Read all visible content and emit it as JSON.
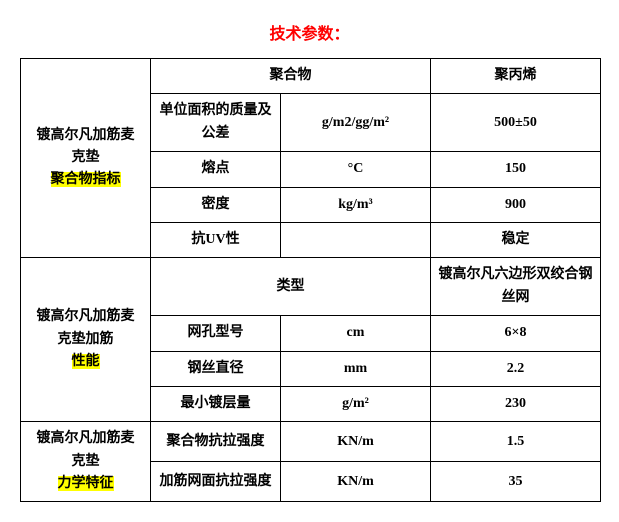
{
  "title": {
    "text": "技术参数：",
    "color": "#ff0000"
  },
  "table": {
    "header": {
      "col23": "聚合物",
      "col4": "聚丙烯"
    },
    "group1": {
      "label_line1": "镀高尔凡加筋麦",
      "label_line2": "克垫",
      "label_hl": "聚合物指标",
      "rows": {
        "r1": {
          "p": "单位面积的质量及公差",
          "u": "g/m2/gg/m²",
          "v": "500±50"
        },
        "r2": {
          "p": "熔点",
          "u": "°C",
          "v": "150"
        },
        "r3": {
          "p": "密度",
          "u": "kg/m³",
          "v": "900"
        },
        "r4": {
          "p": "抗UV性",
          "u": "",
          "v": "稳定"
        }
      }
    },
    "group2": {
      "label_line1": "镀高尔凡加筋麦",
      "label_line2": "克垫加筋",
      "label_hl": "性能",
      "rows": {
        "r1": {
          "p": "类型",
          "u": "",
          "v": "镀高尔凡六边形双绞合钢丝网"
        },
        "r2": {
          "p": "网孔型号",
          "u": "cm",
          "v": "6×8"
        },
        "r3": {
          "p": "钢丝直径",
          "u": "mm",
          "v": "2.2"
        },
        "r4": {
          "p": "最小镀层量",
          "u": "g/m²",
          "v": "230"
        }
      }
    },
    "group3": {
      "label_line1": "镀高尔凡加筋麦",
      "label_line2": "克垫",
      "label_hl": "力学特征",
      "rows": {
        "r1": {
          "p": "聚合物抗拉强度",
          "u": "KN/m",
          "v": "1.5"
        },
        "r2": {
          "p": "加筋网面抗拉强度",
          "u": "KN/m",
          "v": "35"
        }
      }
    }
  },
  "colors": {
    "highlight": "#ffff00",
    "border": "#000000",
    "bg": "#ffffff"
  }
}
